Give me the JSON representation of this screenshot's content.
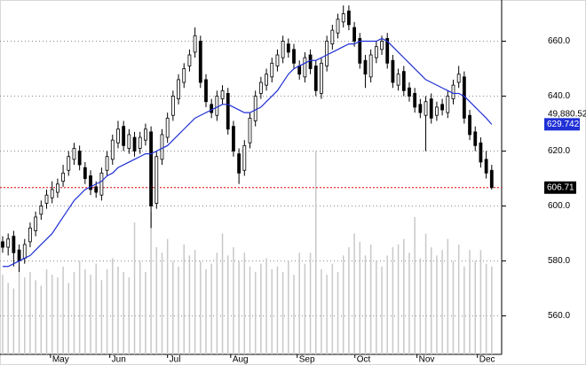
{
  "chart_data": {
    "type": "candlestick",
    "xlim": [
      0,
      90
    ],
    "xticks": [
      {
        "value": 8.7,
        "label": "May"
      },
      {
        "value": 19.5,
        "label": "Jun"
      },
      {
        "value": 30,
        "label": "Jul"
      },
      {
        "value": 41.5,
        "label": "Aug"
      },
      {
        "value": 53.6,
        "label": "Sep"
      },
      {
        "value": 64.1,
        "label": "Oct"
      },
      {
        "value": 75.4,
        "label": "Nov"
      },
      {
        "value": 86.4,
        "label": "Dec"
      }
    ],
    "ylim": [
      546,
      675
    ],
    "yticks": [
      {
        "value": 560,
        "label": "560.0"
      },
      {
        "value": 580,
        "label": "580.0"
      },
      {
        "value": 600,
        "label": "600.0"
      },
      {
        "value": 620,
        "label": "620.0"
      },
      {
        "value": 640,
        "label": "640.0"
      },
      {
        "value": 660,
        "label": "660.0"
      }
    ],
    "grid": true,
    "open": [
      587,
      585,
      589,
      584,
      581,
      587,
      591,
      597,
      601,
      603,
      605,
      609,
      613,
      617,
      620,
      614,
      611,
      607,
      604,
      613,
      617,
      623,
      629,
      621,
      625,
      621,
      624,
      627,
      601,
      617,
      625,
      633,
      639,
      645,
      651,
      656,
      660,
      646,
      637,
      633,
      639,
      641,
      629,
      619,
      613,
      623,
      631,
      641,
      644,
      647,
      651,
      654,
      659,
      657,
      651,
      647,
      655,
      651,
      641,
      651,
      659,
      663,
      667,
      671,
      665,
      661,
      653,
      647,
      654,
      657,
      661,
      653,
      644,
      649,
      643,
      641,
      637,
      633,
      639,
      633,
      637,
      634,
      639,
      645,
      647,
      633,
      627,
      623,
      617,
      613
    ],
    "high": [
      589,
      590,
      591,
      586,
      588,
      594,
      598,
      602,
      606,
      609,
      610,
      615,
      620,
      623,
      622,
      616,
      613,
      609,
      614,
      620,
      626,
      631,
      631,
      628,
      627,
      627,
      630,
      629,
      620,
      628,
      634,
      642,
      648,
      652,
      657,
      665,
      662,
      648,
      639,
      642,
      644,
      643,
      631,
      621,
      624,
      634,
      642,
      647,
      650,
      654,
      657,
      662,
      661,
      659,
      653,
      656,
      657,
      653,
      654,
      662,
      666,
      670,
      673,
      673,
      667,
      663,
      655,
      657,
      660,
      662,
      663,
      655,
      650,
      651,
      645,
      643,
      639,
      640,
      641,
      638,
      639,
      642,
      646,
      651,
      649,
      635,
      629,
      625,
      620,
      615
    ],
    "low": [
      583,
      582,
      578,
      576,
      579,
      585,
      589,
      595,
      599,
      601,
      603,
      607,
      611,
      615,
      613,
      608,
      604,
      603,
      602,
      611,
      615,
      621,
      620,
      619,
      618,
      619,
      622,
      592,
      599,
      615,
      623,
      631,
      637,
      643,
      649,
      654,
      643,
      636,
      632,
      631,
      637,
      626,
      618,
      608,
      611,
      621,
      629,
      639,
      642,
      645,
      649,
      652,
      654,
      650,
      646,
      645,
      648,
      640,
      639,
      649,
      657,
      661,
      665,
      664,
      658,
      650,
      643,
      645,
      652,
      655,
      650,
      643,
      642,
      640,
      638,
      634,
      632,
      620,
      630,
      631,
      633,
      632,
      637,
      643,
      630,
      624,
      620,
      614,
      610,
      606
    ],
    "close": [
      585,
      588,
      583,
      580,
      586,
      592,
      596,
      600,
      604,
      606,
      608,
      612,
      618,
      621,
      615,
      610,
      606,
      605,
      612,
      618,
      624,
      628,
      622,
      626,
      620,
      625,
      628,
      600,
      618,
      626,
      632,
      640,
      646,
      650,
      655,
      662,
      645,
      638,
      634,
      640,
      642,
      628,
      620,
      612,
      622,
      632,
      640,
      645,
      648,
      652,
      655,
      660,
      656,
      652,
      648,
      654,
      650,
      642,
      652,
      660,
      664,
      668,
      670,
      666,
      660,
      652,
      648,
      655,
      658,
      660,
      652,
      645,
      648,
      642,
      640,
      636,
      634,
      638,
      632,
      636,
      635,
      640,
      644,
      648,
      632,
      626,
      622,
      616,
      612,
      606.71
    ],
    "up_color": "#ffffff",
    "down_color": "#000000",
    "moving_average": {
      "color": "#1f2fd6",
      "values": [
        578,
        578,
        579,
        580,
        581,
        582,
        584,
        586,
        588,
        590,
        593,
        596,
        599,
        602,
        604,
        606,
        607,
        608,
        609,
        611,
        612,
        614,
        615,
        616,
        617,
        618,
        619,
        619,
        620,
        621,
        622,
        624,
        626,
        628,
        630,
        632,
        633,
        634,
        635,
        636,
        637,
        637,
        636,
        635,
        634,
        634,
        635,
        636,
        638,
        640,
        642,
        645,
        648,
        650,
        651,
        652,
        653,
        653,
        654,
        655,
        656,
        657,
        658,
        659,
        659,
        660,
        660,
        660,
        660,
        661,
        660,
        658,
        656,
        654,
        652,
        650,
        648,
        646,
        645,
        644,
        643,
        642,
        641,
        641,
        640,
        638,
        636,
        634,
        632,
        629.742
      ]
    },
    "volume": {
      "color": "#c8c8c8",
      "values": [
        575,
        572,
        570,
        578,
        574,
        576,
        573,
        571,
        577,
        575,
        574,
        578,
        572,
        576,
        580,
        577,
        575,
        579,
        573,
        577,
        581,
        578,
        576,
        574,
        594,
        580,
        576,
        598,
        585,
        583,
        588,
        580,
        578,
        586,
        582,
        584,
        580,
        577,
        579,
        583,
        590,
        582,
        585,
        580,
        583,
        578,
        576,
        579,
        581,
        577,
        578,
        576,
        580,
        575,
        583,
        579,
        583,
        620,
        577,
        575,
        579,
        576,
        582,
        585,
        590,
        587,
        582,
        586,
        580,
        578,
        582,
        585,
        586,
        588,
        583,
        596,
        581,
        590,
        585,
        582,
        584,
        588,
        580,
        586,
        578,
        584,
        580,
        584,
        579,
        578
      ]
    },
    "last_line_color": "#e00000",
    "annotations": [
      "49,880.52"
    ]
  }
}
